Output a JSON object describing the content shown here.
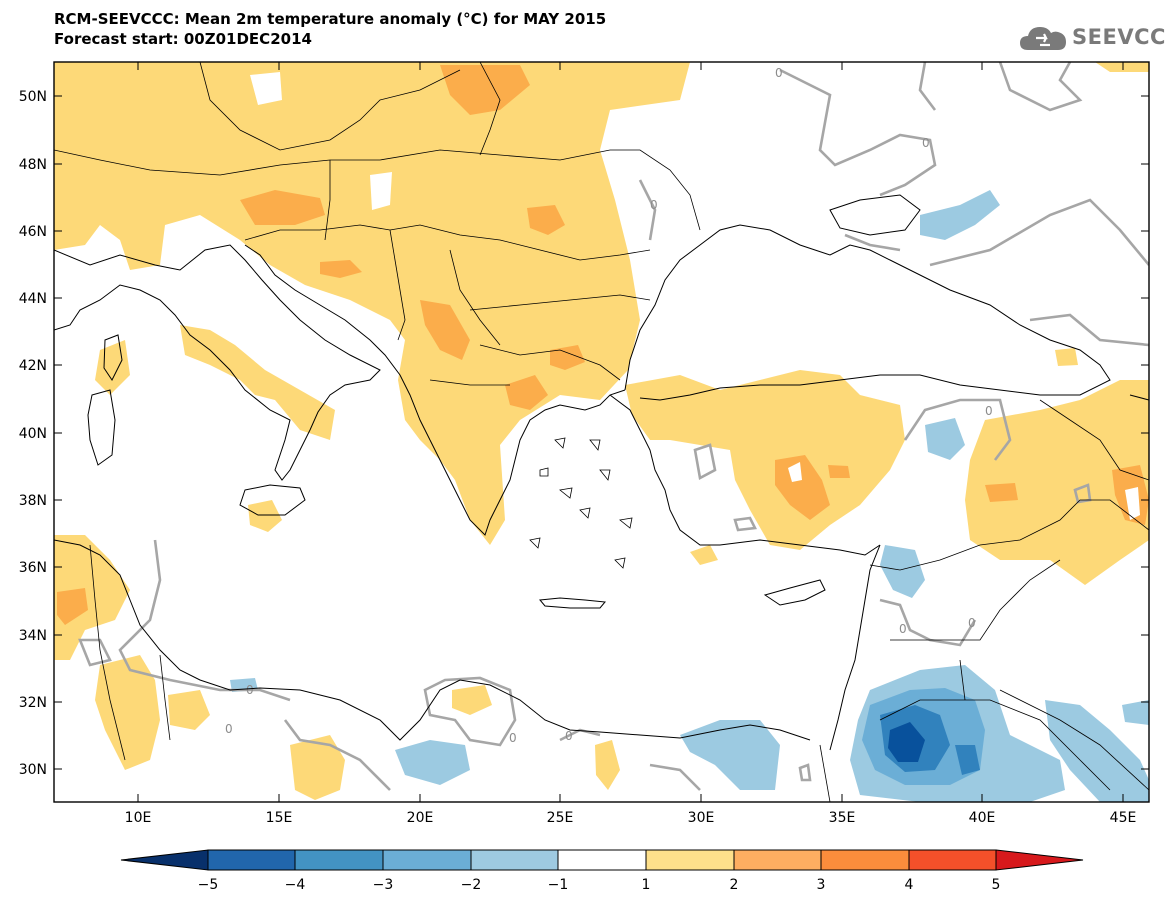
{
  "header": {
    "title": "RCM-SEEVCCC: Mean 2m temperature anomaly (°C) for MAY 2015",
    "subtitle": "Forecast start: 00Z01DEC2014",
    "logo_text": "SEEVCCC",
    "logo_icon": "cloud-icon"
  },
  "map": {
    "lat_ticks": [
      "50N",
      "48N",
      "46N",
      "44N",
      "42N",
      "40N",
      "38N",
      "36N",
      "34N",
      "32N",
      "30N"
    ],
    "lon_ticks": [
      "10E",
      "15E",
      "20E",
      "25E",
      "30E",
      "35E",
      "40E",
      "45E"
    ],
    "contour_label": "0",
    "colors": {
      "plus1_2": "#fdd978",
      "plus2_3": "#fbad4b",
      "minus1_2": "#9ccae1",
      "minus2_3": "#6baed6",
      "minus3_4": "#3182bd",
      "minus4_5": "#08519c",
      "zero_contour": "#a6a6a6",
      "coast": "#000000"
    }
  },
  "colorbar": {
    "ticks": [
      "−5",
      "−4",
      "−3",
      "−2",
      "−1",
      "1",
      "2",
      "3",
      "4",
      "5"
    ],
    "colors": [
      "#08306b",
      "#2166ac",
      "#4393c3",
      "#6baed6",
      "#9ecae1",
      "#ffffff",
      "#fee08b",
      "#fdae61",
      "#fb8d3c",
      "#f4502a",
      "#d7191c"
    ]
  }
}
